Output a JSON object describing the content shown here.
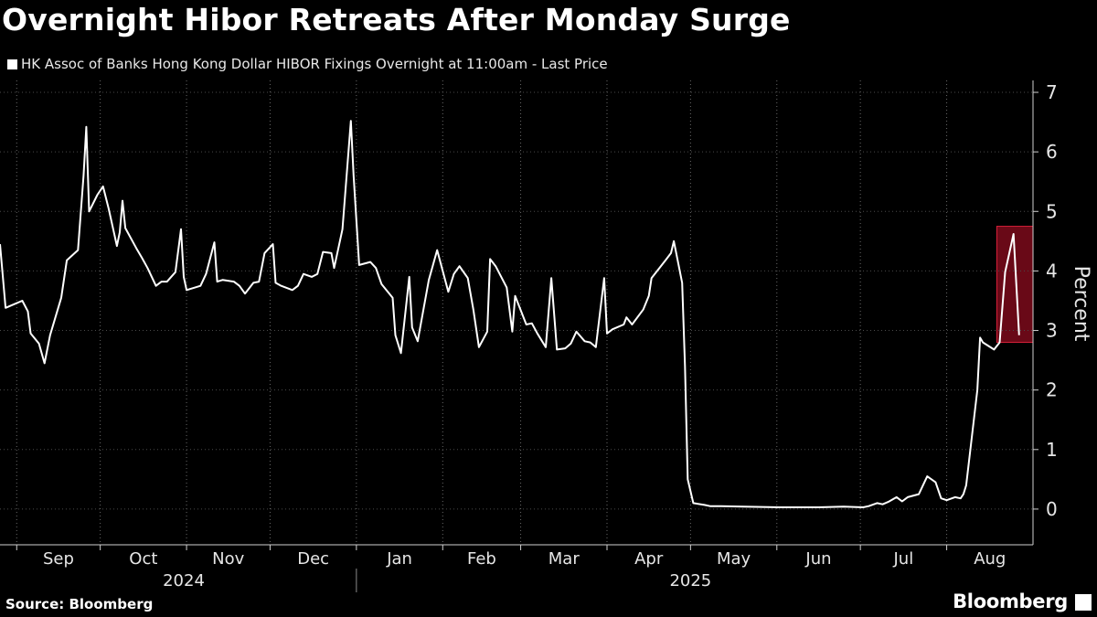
{
  "title": "Overnight Hibor Retreats After Monday Surge",
  "source": "Source: Bloomberg",
  "brand": "Bloomberg",
  "chart_data": {
    "type": "line",
    "series": [
      {
        "name": "HK Assoc of Banks Hong Kong Dollar HIBOR Fixings Overnight at 11:00am - Last Price",
        "color": "#ffffff",
        "points": [
          [
            "2024-08-26",
            4.45
          ],
          [
            "2024-08-28",
            3.38
          ],
          [
            "2024-08-30",
            3.42
          ],
          [
            "2024-09-03",
            3.5
          ],
          [
            "2024-09-05",
            3.32
          ],
          [
            "2024-09-06",
            2.95
          ],
          [
            "2024-09-09",
            2.78
          ],
          [
            "2024-09-11",
            2.45
          ],
          [
            "2024-09-13",
            2.92
          ],
          [
            "2024-09-17",
            3.55
          ],
          [
            "2024-09-19",
            4.18
          ],
          [
            "2024-09-23",
            4.35
          ],
          [
            "2024-09-25",
            5.6
          ],
          [
            "2024-09-26",
            6.42
          ],
          [
            "2024-09-27",
            5.0
          ],
          [
            "2024-09-30",
            5.28
          ],
          [
            "2024-10-02",
            5.42
          ],
          [
            "2024-10-04",
            5.05
          ],
          [
            "2024-10-07",
            4.42
          ],
          [
            "2024-10-08",
            4.65
          ],
          [
            "2024-10-09",
            5.18
          ],
          [
            "2024-10-10",
            4.72
          ],
          [
            "2024-10-14",
            4.38
          ],
          [
            "2024-10-16",
            4.22
          ],
          [
            "2024-10-18",
            4.05
          ],
          [
            "2024-10-21",
            3.75
          ],
          [
            "2024-10-23",
            3.82
          ],
          [
            "2024-10-25",
            3.82
          ],
          [
            "2024-10-28",
            3.98
          ],
          [
            "2024-10-30",
            4.7
          ],
          [
            "2024-10-31",
            3.9
          ],
          [
            "2024-11-01",
            3.68
          ],
          [
            "2024-11-04",
            3.72
          ],
          [
            "2024-11-06",
            3.75
          ],
          [
            "2024-11-08",
            3.95
          ],
          [
            "2024-11-11",
            4.48
          ],
          [
            "2024-11-12",
            3.82
          ],
          [
            "2024-11-14",
            3.85
          ],
          [
            "2024-11-18",
            3.82
          ],
          [
            "2024-11-20",
            3.75
          ],
          [
            "2024-11-22",
            3.62
          ],
          [
            "2024-11-25",
            3.8
          ],
          [
            "2024-11-27",
            3.82
          ],
          [
            "2024-11-29",
            4.3
          ],
          [
            "2024-12-02",
            4.45
          ],
          [
            "2024-12-03",
            3.8
          ],
          [
            "2024-12-05",
            3.75
          ],
          [
            "2024-12-09",
            3.68
          ],
          [
            "2024-12-11",
            3.75
          ],
          [
            "2024-12-13",
            3.95
          ],
          [
            "2024-12-16",
            3.9
          ],
          [
            "2024-12-18",
            3.95
          ],
          [
            "2024-12-20",
            4.32
          ],
          [
            "2024-12-23",
            4.3
          ],
          [
            "2024-12-24",
            4.05
          ],
          [
            "2024-12-27",
            4.7
          ],
          [
            "2024-12-30",
            6.52
          ],
          [
            "2024-12-31",
            5.6
          ],
          [
            "2025-01-02",
            4.1
          ],
          [
            "2025-01-06",
            4.15
          ],
          [
            "2025-01-08",
            4.05
          ],
          [
            "2025-01-10",
            3.78
          ],
          [
            "2025-01-14",
            3.55
          ],
          [
            "2025-01-15",
            2.92
          ],
          [
            "2025-01-17",
            2.62
          ],
          [
            "2025-01-20",
            3.9
          ],
          [
            "2025-01-21",
            3.05
          ],
          [
            "2025-01-23",
            2.82
          ],
          [
            "2025-01-27",
            3.85
          ],
          [
            "2025-01-30",
            4.35
          ],
          [
            "2025-02-03",
            3.65
          ],
          [
            "2025-02-05",
            3.95
          ],
          [
            "2025-02-07",
            4.08
          ],
          [
            "2025-02-10",
            3.88
          ],
          [
            "2025-02-12",
            3.35
          ],
          [
            "2025-02-14",
            2.72
          ],
          [
            "2025-02-17",
            2.98
          ],
          [
            "2025-02-18",
            4.2
          ],
          [
            "2025-02-20",
            4.08
          ],
          [
            "2025-02-24",
            3.72
          ],
          [
            "2025-02-26",
            2.98
          ],
          [
            "2025-02-27",
            3.58
          ],
          [
            "2025-03-03",
            3.1
          ],
          [
            "2025-03-05",
            3.12
          ],
          [
            "2025-03-07",
            2.95
          ],
          [
            "2025-03-10",
            2.72
          ],
          [
            "2025-03-12",
            3.88
          ],
          [
            "2025-03-14",
            2.68
          ],
          [
            "2025-03-17",
            2.7
          ],
          [
            "2025-03-19",
            2.78
          ],
          [
            "2025-03-21",
            2.98
          ],
          [
            "2025-03-24",
            2.82
          ],
          [
            "2025-03-26",
            2.8
          ],
          [
            "2025-03-28",
            2.72
          ],
          [
            "2025-03-31",
            3.88
          ],
          [
            "2025-04-01",
            2.95
          ],
          [
            "2025-04-03",
            3.02
          ],
          [
            "2025-04-07",
            3.1
          ],
          [
            "2025-04-08",
            3.22
          ],
          [
            "2025-04-10",
            3.1
          ],
          [
            "2025-04-14",
            3.35
          ],
          [
            "2025-04-16",
            3.58
          ],
          [
            "2025-04-17",
            3.88
          ],
          [
            "2025-04-22",
            4.18
          ],
          [
            "2025-04-24",
            4.3
          ],
          [
            "2025-04-25",
            4.5
          ],
          [
            "2025-04-28",
            3.8
          ],
          [
            "2025-04-29",
            2.4
          ],
          [
            "2025-04-30",
            0.5
          ],
          [
            "2025-05-02",
            0.1
          ],
          [
            "2025-05-06",
            0.07
          ],
          [
            "2025-05-08",
            0.05
          ],
          [
            "2025-05-12",
            0.05
          ],
          [
            "2025-05-20",
            0.04
          ],
          [
            "2025-06-02",
            0.03
          ],
          [
            "2025-06-16",
            0.03
          ],
          [
            "2025-06-25",
            0.04
          ],
          [
            "2025-07-02",
            0.03
          ],
          [
            "2025-07-04",
            0.05
          ],
          [
            "2025-07-07",
            0.1
          ],
          [
            "2025-07-09",
            0.08
          ],
          [
            "2025-07-11",
            0.12
          ],
          [
            "2025-07-14",
            0.2
          ],
          [
            "2025-07-16",
            0.13
          ],
          [
            "2025-07-18",
            0.2
          ],
          [
            "2025-07-22",
            0.25
          ],
          [
            "2025-07-25",
            0.55
          ],
          [
            "2025-07-28",
            0.45
          ],
          [
            "2025-07-30",
            0.18
          ],
          [
            "2025-08-01",
            0.15
          ],
          [
            "2025-08-04",
            0.2
          ],
          [
            "2025-08-06",
            0.18
          ],
          [
            "2025-08-07",
            0.25
          ],
          [
            "2025-08-08",
            0.4
          ],
          [
            "2025-08-12",
            2.0
          ],
          [
            "2025-08-13",
            2.88
          ],
          [
            "2025-08-14",
            2.8
          ],
          [
            "2025-08-18",
            2.68
          ],
          [
            "2025-08-20",
            2.8
          ],
          [
            "2025-08-22",
            3.98
          ],
          [
            "2025-08-25",
            4.62
          ],
          [
            "2025-08-27",
            2.92
          ]
        ]
      }
    ],
    "xlim": [
      "2024-08-26",
      "2025-09-01"
    ],
    "ylim": [
      -0.6,
      7.2
    ],
    "yticks": [
      0,
      1,
      2,
      3,
      4,
      5,
      6,
      7
    ],
    "ylabel": "Percent",
    "y_axis_position": "right",
    "month_ticks": [
      {
        "label": "Sep",
        "date": "2024-09-01"
      },
      {
        "label": "Oct",
        "date": "2024-10-01"
      },
      {
        "label": "Nov",
        "date": "2024-11-01"
      },
      {
        "label": "Dec",
        "date": "2024-12-01"
      },
      {
        "label": "Jan",
        "date": "2025-01-01"
      },
      {
        "label": "Feb",
        "date": "2025-02-01"
      },
      {
        "label": "Mar",
        "date": "2025-03-01"
      },
      {
        "label": "Apr",
        "date": "2025-04-01"
      },
      {
        "label": "May",
        "date": "2025-05-01"
      },
      {
        "label": "Jun",
        "date": "2025-06-01"
      },
      {
        "label": "Jul",
        "date": "2025-07-01"
      },
      {
        "label": "Aug",
        "date": "2025-08-01"
      }
    ],
    "year_labels": [
      {
        "label": "2024",
        "center": "2024-10-31"
      },
      {
        "label": "2025",
        "center": "2025-05-01"
      }
    ],
    "year_separator": "2025-01-01",
    "highlight": {
      "x": [
        "2025-08-19",
        "2025-09-01"
      ],
      "y": [
        2.8,
        4.75
      ],
      "color": "#c0102a"
    },
    "grid": "vertical-dotted",
    "background": "#000000"
  }
}
